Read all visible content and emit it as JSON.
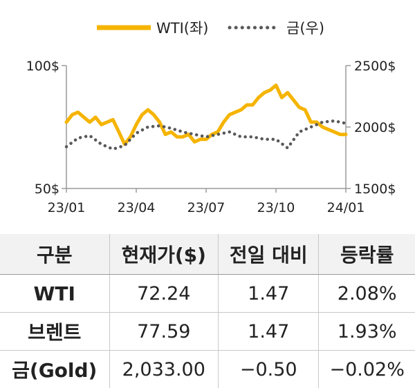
{
  "chart_data": {
    "type": "line",
    "legend": {
      "placement": "top-center"
    },
    "grid": false,
    "x_tick_labels": [
      "23/01",
      "23/04",
      "23/07",
      "23/10",
      "24/01"
    ],
    "x_range": [
      "2023-01",
      "2024-01"
    ],
    "y_left": {
      "ticks": [
        "100$",
        "50$"
      ],
      "range": [
        50,
        100
      ]
    },
    "y_right": {
      "ticks": [
        "2500$",
        "2000$",
        "1500$"
      ],
      "range": [
        1500,
        2500
      ]
    },
    "colors": {
      "wti": "#F5B400",
      "gold": "#595959"
    },
    "series": [
      {
        "name": "WTI(좌)",
        "axis": "left",
        "style": "solid",
        "months": [
          0,
          0.25,
          0.5,
          0.75,
          1,
          1.25,
          1.5,
          1.75,
          2,
          2.25,
          2.5,
          2.75,
          3,
          3.25,
          3.5,
          3.75,
          4,
          4.25,
          4.5,
          4.75,
          5,
          5.25,
          5.5,
          5.75,
          6,
          6.25,
          6.5,
          6.75,
          7,
          7.25,
          7.5,
          7.75,
          8,
          8.25,
          8.5,
          8.75,
          9,
          9.25,
          9.5,
          9.75,
          10,
          10.25,
          10.5,
          10.75,
          11,
          11.25,
          11.5,
          11.75,
          12
        ],
        "values": [
          77,
          80,
          81,
          79,
          77,
          79,
          76,
          77,
          78,
          73,
          68,
          71,
          76,
          80,
          82,
          80,
          77,
          72,
          73,
          71,
          71,
          72,
          69,
          70,
          70,
          72,
          73,
          77,
          80,
          81,
          82,
          84,
          84,
          87,
          89,
          90,
          92,
          87,
          89,
          86,
          83,
          82,
          77,
          77,
          75,
          74,
          73,
          72,
          72
        ]
      },
      {
        "name": "금(우)",
        "axis": "right",
        "style": "dotted",
        "months": [
          0,
          0.5,
          1,
          1.5,
          2,
          2.5,
          3,
          3.5,
          4,
          4.5,
          5,
          5.5,
          6,
          6.5,
          7,
          7.5,
          8,
          8.5,
          9,
          9.5,
          10,
          10.5,
          11,
          11.5,
          12
        ],
        "values": [
          1840,
          1910,
          1930,
          1860,
          1820,
          1850,
          1950,
          2000,
          2010,
          1990,
          1960,
          1940,
          1920,
          1940,
          1960,
          1920,
          1920,
          1900,
          1900,
          1830,
          1960,
          2000,
          2040,
          2050,
          2030
        ]
      }
    ]
  },
  "table": {
    "headers": [
      "구분",
      "현재가($)",
      "전일 대비",
      "등락률"
    ],
    "rows": [
      [
        "WTI",
        "72.24",
        "1.47",
        "2.08%"
      ],
      [
        "브렌트",
        "77.59",
        "1.47",
        "1.93%"
      ],
      [
        "금(Gold)",
        "2,033.00",
        "−0.50",
        "−0.02%"
      ]
    ]
  }
}
